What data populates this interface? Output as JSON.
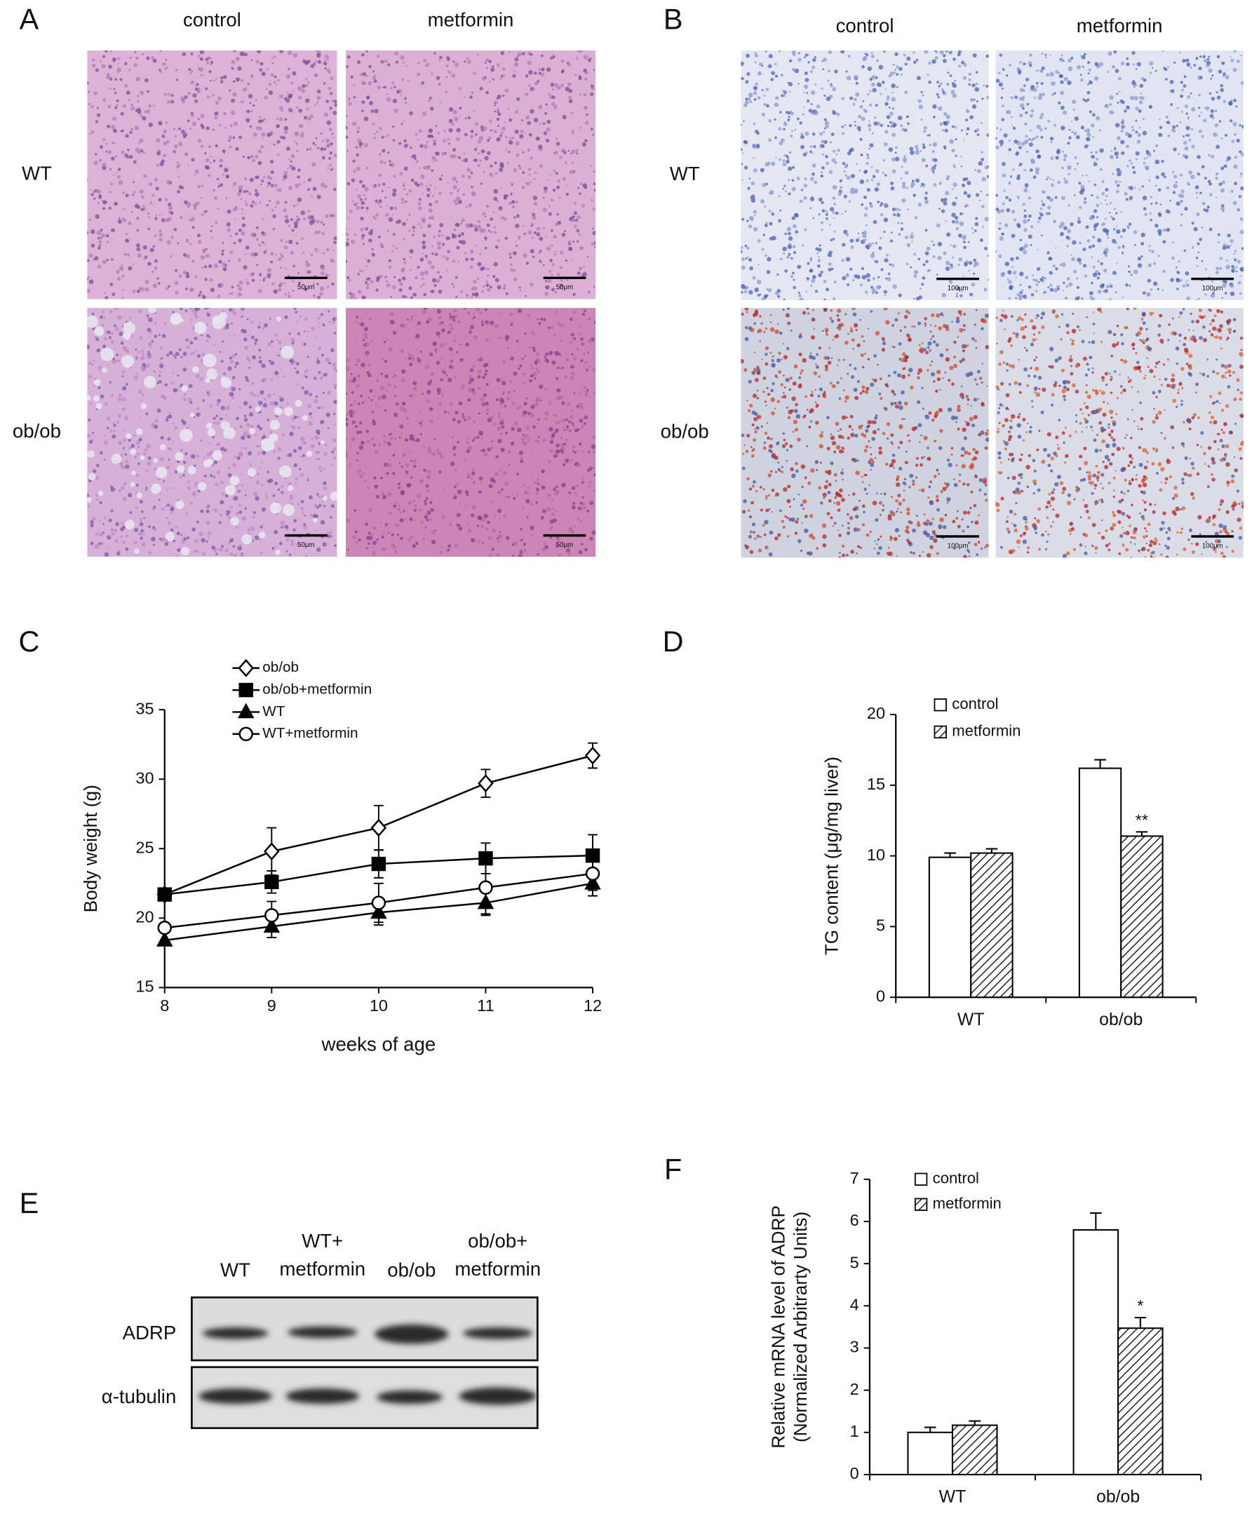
{
  "panels": {
    "A": {
      "letter": "A",
      "columns": [
        "control",
        "metformin"
      ],
      "rows": [
        "WT",
        "ob/ob"
      ],
      "scale_bars": [
        [
          "50μm",
          "50μm"
        ],
        [
          "50μm",
          "50μm"
        ]
      ]
    },
    "B": {
      "letter": "B",
      "columns": [
        "control",
        "metformin"
      ],
      "rows": [
        "WT",
        "ob/ob"
      ],
      "scale_bars": [
        [
          "100μm",
          "100μm"
        ],
        [
          "100μm",
          "100μm"
        ]
      ]
    },
    "E": {
      "letter": "E",
      "lanes": [
        [
          "WT"
        ],
        [
          "WT+",
          "metformin"
        ],
        [
          "ob/ob"
        ],
        [
          "ob/ob+",
          "metformin"
        ]
      ],
      "rows": [
        "ADRP",
        "α-tubulin"
      ]
    }
  },
  "chart_data": [
    {
      "type": "line",
      "panel": "C",
      "xlabel": "weeks of age",
      "ylabel": "Body weight (g)",
      "x": [
        8,
        9,
        10,
        11,
        12
      ],
      "xlim": [
        8,
        12
      ],
      "xticks": [
        8,
        9,
        10,
        11,
        12
      ],
      "ylim": [
        15,
        35
      ],
      "yticks": [
        15,
        20,
        25,
        30,
        35
      ],
      "series": [
        {
          "name": "ob/ob",
          "color": "#000000",
          "marker": "diamond",
          "filled": false,
          "values": [
            21.7,
            24.8,
            26.5,
            29.7,
            31.7
          ],
          "errors": [
            null,
            1.7,
            1.6,
            1.0,
            0.9
          ]
        },
        {
          "name": "ob/ob+metformin",
          "color": "#000000",
          "marker": "square",
          "filled": true,
          "values": [
            21.7,
            22.6,
            23.9,
            24.3,
            24.5
          ],
          "errors": [
            null,
            0.8,
            1.0,
            1.1,
            1.5
          ]
        },
        {
          "name": "WT",
          "color": "#000000",
          "marker": "triangle",
          "filled": true,
          "values": [
            18.4,
            19.4,
            20.4,
            21.1,
            22.5
          ],
          "errors": [
            null,
            0.8,
            0.9,
            0.9,
            0.9
          ]
        },
        {
          "name": "WT+metformin",
          "color": "#000000",
          "marker": "circle",
          "filled": false,
          "values": [
            19.3,
            20.2,
            21.1,
            22.2,
            23.2
          ],
          "errors": [
            null,
            1.0,
            1.4,
            1.9,
            1.2
          ]
        }
      ]
    },
    {
      "type": "bar",
      "panel": "D",
      "ylabel": "TG content (μg/mg liver)",
      "categories": [
        "WT",
        "ob/ob"
      ],
      "ylim": [
        0,
        20
      ],
      "yticks": [
        0,
        5,
        10,
        15,
        20
      ],
      "series": [
        {
          "name": "control",
          "color": "#ffffff",
          "pattern": "none",
          "values": [
            9.9,
            16.2
          ],
          "errors": [
            0.3,
            0.6
          ],
          "marks": [
            null,
            null
          ]
        },
        {
          "name": "metformin",
          "color": "#ffffff",
          "pattern": "hatch",
          "values": [
            10.2,
            11.4
          ],
          "errors": [
            0.3,
            0.3
          ],
          "marks": [
            null,
            "**"
          ]
        }
      ]
    },
    {
      "type": "bar",
      "panel": "F",
      "ylabel": [
        "Relative mRNA level of ADRP",
        "(Normalized Arbitrarty Units)"
      ],
      "categories": [
        "WT",
        "ob/ob"
      ],
      "ylim": [
        0,
        7
      ],
      "yticks": [
        0,
        1,
        2,
        3,
        4,
        5,
        6,
        7
      ],
      "series": [
        {
          "name": "control",
          "color": "#ffffff",
          "pattern": "none",
          "values": [
            1.0,
            5.8
          ],
          "errors": [
            0.12,
            0.4
          ],
          "marks": [
            null,
            null
          ]
        },
        {
          "name": "metformin",
          "color": "#ffffff",
          "pattern": "hatch",
          "values": [
            1.17,
            3.47
          ],
          "errors": [
            0.1,
            0.25
          ],
          "marks": [
            null,
            "*"
          ]
        }
      ]
    }
  ]
}
